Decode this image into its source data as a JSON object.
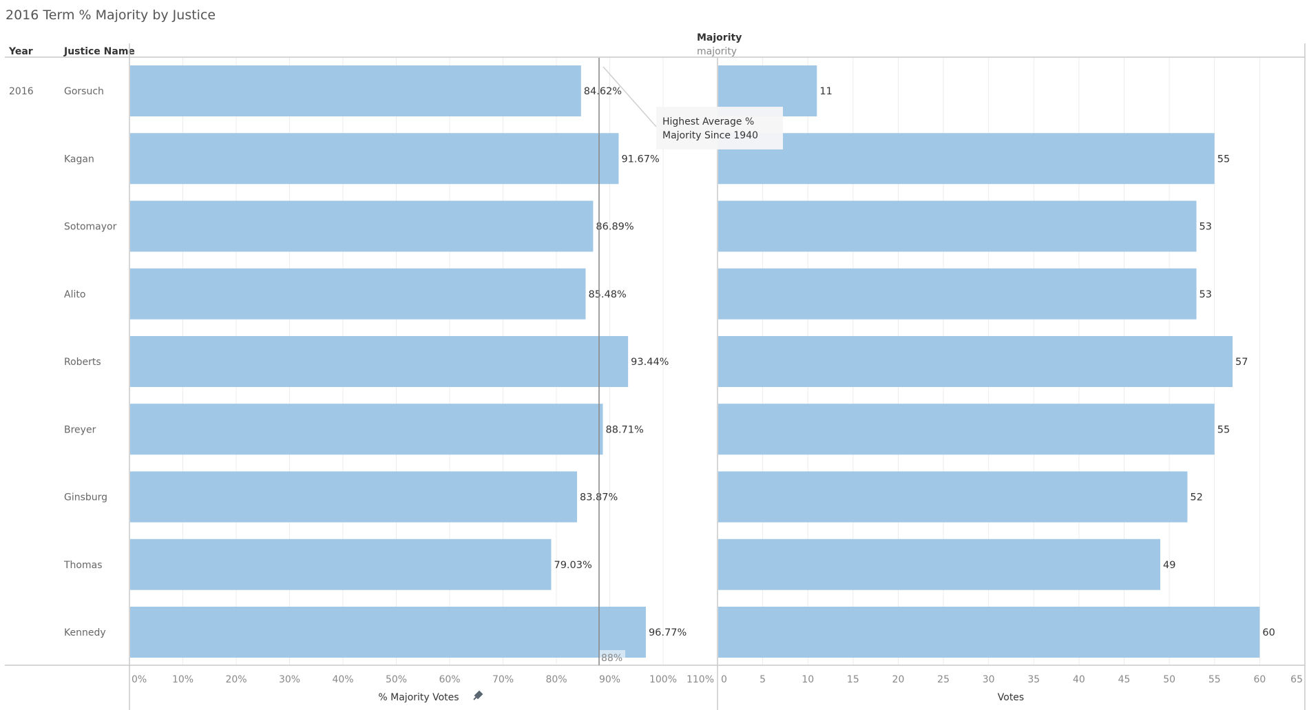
{
  "title": "2016 Term % Majority by Justice",
  "headers": {
    "year": "Year",
    "justice_name": "Justice Name",
    "measure_group": "Majority",
    "measure_sub": "majority"
  },
  "annotation": {
    "line1": "Highest Average %",
    "line2": "Majority Since 1940"
  },
  "colors": {
    "bar": "#a0c8e6",
    "reference_line": "#8a8a8a"
  },
  "chart_data": [
    {
      "type": "bar",
      "orientation": "horizontal",
      "title": "2016 Term % Majority by Justice",
      "year": "2016",
      "categories": [
        "Gorsuch",
        "Kagan",
        "Sotomayor",
        "Alito",
        "Roberts",
        "Breyer",
        "Ginsburg",
        "Thomas",
        "Kennedy"
      ],
      "values": [
        84.62,
        91.67,
        86.89,
        85.48,
        93.44,
        88.71,
        83.87,
        79.03,
        96.77
      ],
      "value_labels": [
        "84.62%",
        "91.67%",
        "86.89%",
        "85.48%",
        "93.44%",
        "88.71%",
        "83.87%",
        "79.03%",
        "96.77%"
      ],
      "xlabel": "% Majority Votes",
      "xlim": [
        0,
        110
      ],
      "xticks": [
        "0%",
        "10%",
        "20%",
        "30%",
        "40%",
        "50%",
        "60%",
        "70%",
        "80%",
        "90%",
        "100%",
        "110%"
      ],
      "reference_line": {
        "value": 88,
        "label": "88%"
      },
      "grid": true
    },
    {
      "type": "bar",
      "orientation": "horizontal",
      "categories": [
        "Gorsuch",
        "Kagan",
        "Sotomayor",
        "Alito",
        "Roberts",
        "Breyer",
        "Ginsburg",
        "Thomas",
        "Kennedy"
      ],
      "values": [
        11,
        55,
        53,
        53,
        57,
        55,
        52,
        49,
        60
      ],
      "value_labels": [
        "11",
        "55",
        "53",
        "53",
        "57",
        "55",
        "52",
        "49",
        "60"
      ],
      "xlabel": "Votes",
      "xlim": [
        0,
        65
      ],
      "xticks": [
        "0",
        "5",
        "10",
        "15",
        "20",
        "25",
        "30",
        "35",
        "40",
        "45",
        "50",
        "55",
        "60",
        "65"
      ],
      "grid": true
    }
  ]
}
